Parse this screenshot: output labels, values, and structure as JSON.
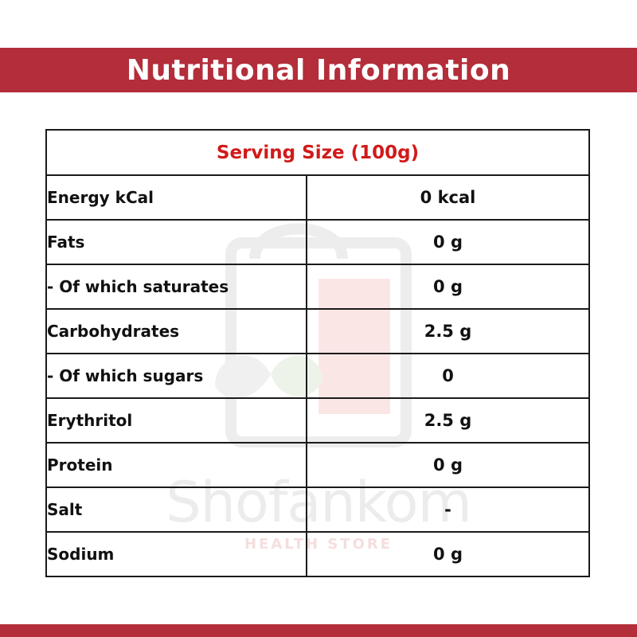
{
  "title": "Nutritional Information",
  "serving_size": "Serving Size (100g)",
  "rows": [
    {
      "label": "Energy kCal",
      "value": "0 kcal"
    },
    {
      "label": "Fats",
      "value": "0 g"
    },
    {
      "label": "- Of which saturates",
      "value": "0 g"
    },
    {
      "label": "Carbohydrates",
      "value": "2.5 g"
    },
    {
      "label": "- Of which sugars",
      "value": "0"
    },
    {
      "label": "Erythritol",
      "value": "2.5 g"
    },
    {
      "label": "Protein",
      "value": "0 g"
    },
    {
      "label": "Salt",
      "value": "-"
    },
    {
      "label": "Sodium",
      "value": "0 g"
    }
  ],
  "watermark": {
    "brand": "Shofankom",
    "tagline": "HEALTH STORE"
  },
  "colors": {
    "banner": "#b32d3a",
    "serving_text": "#d11a1a",
    "border": "#1a1a1a"
  }
}
